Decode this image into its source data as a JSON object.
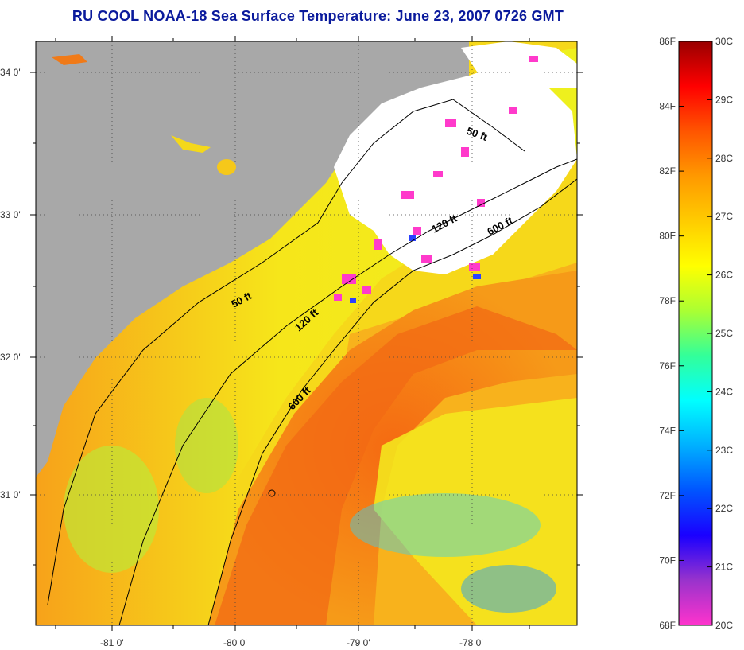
{
  "title": "RU COOL  NOAA-18  Sea Surface Temperature:  June 23, 2007 0726 GMT",
  "map": {
    "lat_ticks": [
      "34 0'",
      "33 0'",
      "32 0'",
      "31 0'"
    ],
    "lon_ticks": [
      "-81 0'",
      "-80 0'",
      "-79 0'",
      "-78 0'"
    ],
    "isobaths": [
      {
        "label": "50 ft"
      },
      {
        "label": "120 ft"
      },
      {
        "label": "600 ft"
      },
      {
        "label": "50 ft"
      },
      {
        "label": "120 ft"
      },
      {
        "label": "600 ft"
      }
    ],
    "colors": {
      "land": "#a8a8a8",
      "cloud": "#ffffff",
      "warm": "#f77a10",
      "mid": "#f4e818",
      "cool": "#28d8e0"
    }
  },
  "colorbar": {
    "f_ticks": [
      "86F",
      "84F",
      "82F",
      "80F",
      "78F",
      "76F",
      "74F",
      "72F",
      "70F",
      "68F"
    ],
    "c_ticks": [
      "30C",
      "29C",
      "28C",
      "27C",
      "26C",
      "25C",
      "24C",
      "23C",
      "22C",
      "21C",
      "20C"
    ],
    "stops": [
      "#ff33cc",
      "#9933cc",
      "#1a00ff",
      "#0055ff",
      "#00b0ff",
      "#00ffff",
      "#33ff99",
      "#aaff33",
      "#ffff00",
      "#ffcc00",
      "#ff9900",
      "#ff5500",
      "#ff0000",
      "#990000"
    ]
  }
}
